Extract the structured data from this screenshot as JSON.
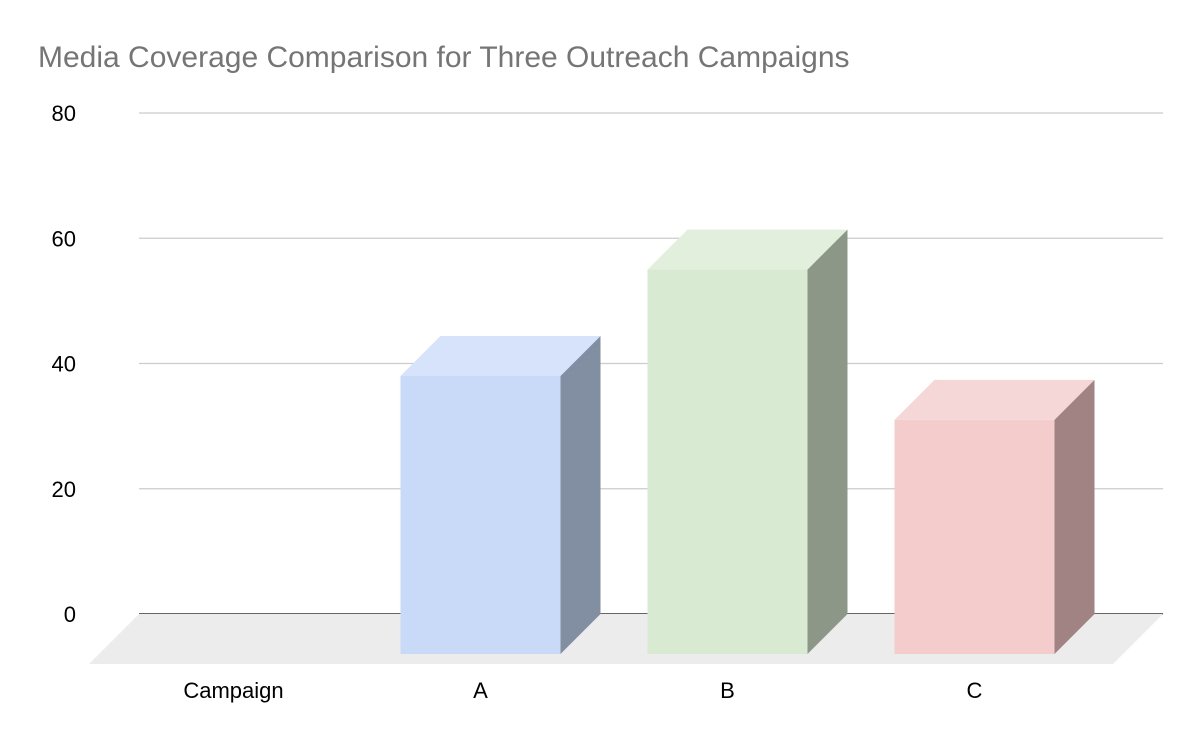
{
  "chart_data": {
    "type": "bar",
    "title": "Media Coverage Comparison for Three Outreach Campaigns",
    "categories": [
      "Campaign",
      "A",
      "B",
      "C"
    ],
    "series": [
      {
        "values": [
          null,
          38,
          55,
          31
        ]
      }
    ],
    "yticks": [
      0,
      20,
      40,
      60,
      80
    ],
    "ylim": [
      0,
      80
    ],
    "grid": true,
    "legend": "none",
    "three_d": true,
    "colors": {
      "A": {
        "front": "#c9daf8",
        "top": "#d6e3fa",
        "side": "#828ea1"
      },
      "B": {
        "front": "#d9ead3",
        "top": "#e2efdd",
        "side": "#8c9787"
      },
      "C": {
        "front": "#f4cccc",
        "top": "#f6d7d8",
        "side": "#a18383"
      }
    },
    "floor_color": "#ececec",
    "gridline_color": "#cccccc"
  }
}
